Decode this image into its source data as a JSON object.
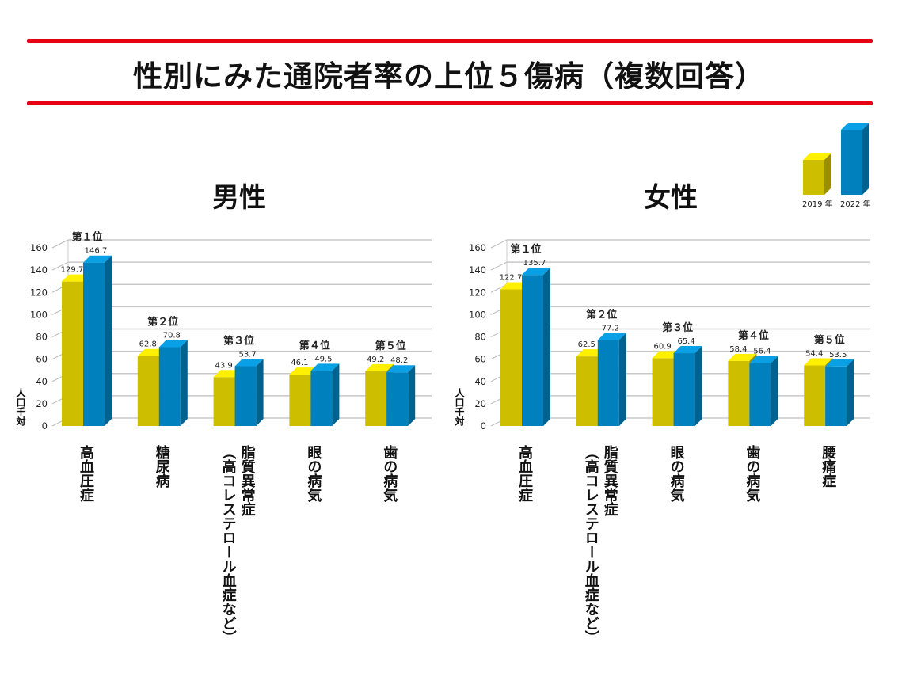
{
  "title": "性別にみた通院者率の上位５傷病（複数回答）",
  "colors": {
    "y2019": "#cdbf00",
    "y2019_top": "#fff000",
    "y2019_side": "#9a8f00",
    "y2022": "#0080bc",
    "y2022_top": "#0aa0e6",
    "y2022_side": "#00628f",
    "accent": "#e60012"
  },
  "legend": [
    "2019 年",
    "2022 年"
  ],
  "chart_data": [
    {
      "type": "bar",
      "title": "男性",
      "ylabel": "人口千対",
      "ylim": [
        0,
        160
      ],
      "yticks": [
        "0",
        "20",
        "40",
        "60",
        "80",
        "100",
        "120",
        "140",
        "160"
      ],
      "grid": true,
      "categories": [
        [
          "高血圧症"
        ],
        [
          "糖尿病"
        ],
        [
          "脂質異常症",
          "（高コレステロール血症など）"
        ],
        [
          "眼の病気"
        ],
        [
          "歯の病気"
        ]
      ],
      "ranks": [
        "第１位",
        "第２位",
        "第３位",
        "第４位",
        "第５位"
      ],
      "series": [
        {
          "name": "2019 年",
          "values": [
            129.7,
            62.8,
            43.9,
            46.1,
            49.2
          ],
          "labels": [
            "129.7",
            "62.8",
            "43.9",
            "46.1",
            "49.2"
          ]
        },
        {
          "name": "2022 年",
          "values": [
            146.7,
            70.8,
            53.7,
            49.5,
            48.2
          ],
          "labels": [
            "146.7",
            "70.8",
            "53.7",
            "49.5",
            "48.2"
          ]
        }
      ]
    },
    {
      "type": "bar",
      "title": "女性",
      "ylabel": "人口千対",
      "ylim": [
        0,
        160
      ],
      "yticks": [
        "0",
        "20",
        "40",
        "60",
        "80",
        "100",
        "120",
        "140",
        "160"
      ],
      "grid": true,
      "categories": [
        [
          "高血圧症"
        ],
        [
          "脂質異常症",
          "（高コレステロール血症など）"
        ],
        [
          "眼の病気"
        ],
        [
          "歯の病気"
        ],
        [
          "腰痛症"
        ]
      ],
      "ranks": [
        "第１位",
        "第２位",
        "第３位",
        "第４位",
        "第５位"
      ],
      "series": [
        {
          "name": "2019 年",
          "values": [
            122.7,
            62.5,
            60.9,
            58.4,
            54.4
          ],
          "labels": [
            "122.7",
            "62.5",
            "60.9",
            "58.4",
            "54.4"
          ]
        },
        {
          "name": "2022 年",
          "values": [
            135.7,
            77.2,
            65.4,
            56.4,
            53.5
          ],
          "labels": [
            "135.7",
            "77.2",
            "65.4",
            "56.4",
            "53.5"
          ]
        }
      ]
    }
  ]
}
